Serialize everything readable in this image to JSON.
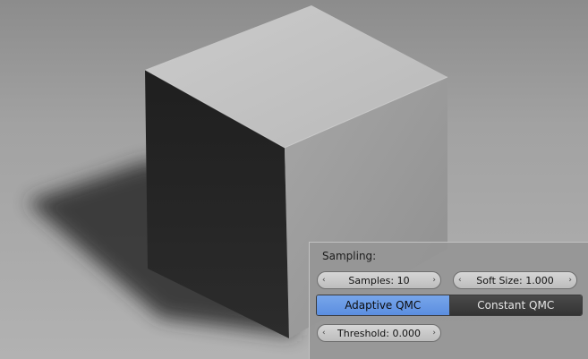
{
  "sampling_panel": {
    "title": "Sampling:",
    "samples_label": "Samples: 10",
    "soft_size_label": "Soft Size: 1.000",
    "adaptive_qmc_label": "Adaptive QMC",
    "constant_qmc_label": "Constant QMC",
    "threshold_label": "Threshold: 0.000",
    "arrow_left": "‹",
    "arrow_right": "›",
    "active_method": "Adaptive QMC"
  },
  "colors": {
    "active_button": "#5b8ee0",
    "inactive_button": "#333333",
    "panel_background": "#969696"
  }
}
